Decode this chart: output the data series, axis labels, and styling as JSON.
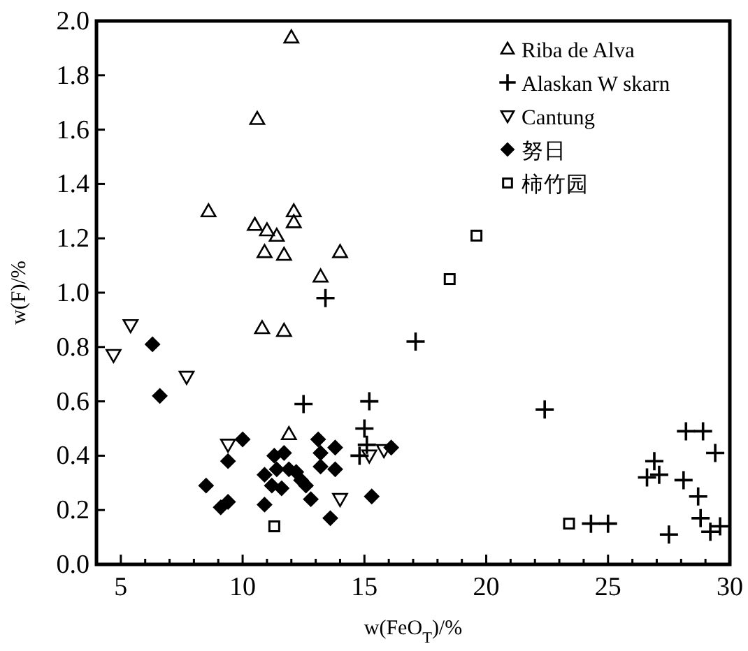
{
  "chart_data": {
    "type": "scatter",
    "xlabel": "w(FeO$_{T}$)/%",
    "ylabel": "w(F)/%",
    "xlim": [
      4,
      30
    ],
    "ylim": [
      0,
      2
    ],
    "xticks": [
      5,
      {
        "value": 6,
        "label": null
      },
      {
        "value": 7,
        "label": null
      },
      {
        "value": 8,
        "label": null
      },
      {
        "value": 9,
        "label": null
      },
      10,
      {
        "value": 11,
        "label": null
      },
      {
        "value": 12,
        "label": null
      },
      {
        "value": 13,
        "label": null
      },
      {
        "value": 14,
        "label": null
      },
      15,
      {
        "value": 16,
        "label": null
      },
      {
        "value": 17,
        "label": null
      },
      {
        "value": 18,
        "label": null
      },
      {
        "value": 19,
        "label": null
      },
      20,
      {
        "value": 21,
        "label": null
      },
      {
        "value": 22,
        "label": null
      },
      {
        "value": 23,
        "label": null
      },
      {
        "value": 24,
        "label": null
      },
      25,
      {
        "value": 26,
        "label": null
      },
      {
        "value": 27,
        "label": null
      },
      {
        "value": 28,
        "label": null
      },
      {
        "value": 29,
        "label": null
      },
      30
    ],
    "yticks": [
      {
        "value": 0,
        "label": "0.0"
      },
      {
        "value": 0.2,
        "label": "0.2"
      },
      {
        "value": 0.4,
        "label": "0.4"
      },
      {
        "value": 0.6,
        "label": "0.6"
      },
      {
        "value": 0.8,
        "label": "0.8"
      },
      {
        "value": 1,
        "label": "1.0"
      },
      {
        "value": 1.2,
        "label": "1.2"
      },
      {
        "value": 1.4,
        "label": "1.4"
      },
      {
        "value": 1.6,
        "label": "1.6"
      },
      {
        "value": 1.8,
        "label": "1.8"
      },
      {
        "value": 2,
        "label": "2.0"
      }
    ],
    "grid": false,
    "legend": "top right",
    "series": [
      {
        "name": "Riba de Alva",
        "color": "#000000",
        "marker": "triangle",
        "x": [
          12.0,
          10.6,
          8.6,
          10.5,
          11.0,
          11.4,
          12.1,
          12.1,
          10.9,
          11.7,
          14.0,
          13.2,
          10.8,
          11.7,
          11.9
        ],
        "values": [
          1.94,
          1.64,
          1.3,
          1.25,
          1.23,
          1.21,
          1.3,
          1.26,
          1.15,
          1.14,
          1.15,
          1.06,
          0.87,
          0.86,
          0.48
        ]
      },
      {
        "name": "Alaskan W skarn",
        "color": "#000000",
        "marker": "cross",
        "x": [
          13.4,
          12.5,
          15.2,
          15.0,
          14.8,
          15.1,
          17.1,
          22.4,
          28.2,
          28.9,
          29.4,
          26.9,
          26.6,
          27.1,
          28.1,
          28.7,
          28.8,
          29.2,
          29.6,
          27.5,
          24.3,
          25.0
        ],
        "values": [
          0.98,
          0.59,
          0.6,
          0.5,
          0.4,
          0.44,
          0.82,
          0.57,
          0.49,
          0.49,
          0.41,
          0.38,
          0.32,
          0.33,
          0.31,
          0.25,
          0.17,
          0.12,
          0.14,
          0.11,
          0.15,
          0.15
        ]
      },
      {
        "name": "Cantung",
        "color": "#000000",
        "marker": "triangle-down",
        "x": [
          4.7,
          5.4,
          7.7,
          9.4,
          14.0,
          15.2,
          15.8
        ],
        "values": [
          0.77,
          0.88,
          0.69,
          0.44,
          0.24,
          0.4,
          0.42
        ]
      },
      {
        "name": "努日",
        "color": "#000000",
        "marker": "diamond",
        "x": [
          6.3,
          6.6,
          8.5,
          9.1,
          9.4,
          9.4,
          10.0,
          10.9,
          10.9,
          11.3,
          11.7,
          11.4,
          11.2,
          11.6,
          11.9,
          12.2,
          12.4,
          12.6,
          12.8,
          13.2,
          13.2,
          13.1,
          13.8,
          13.8,
          13.6,
          15.3,
          16.1
        ],
        "values": [
          0.81,
          0.62,
          0.29,
          0.21,
          0.23,
          0.38,
          0.46,
          0.22,
          0.33,
          0.4,
          0.41,
          0.35,
          0.29,
          0.28,
          0.35,
          0.34,
          0.31,
          0.29,
          0.24,
          0.36,
          0.41,
          0.46,
          0.43,
          0.35,
          0.17,
          0.25,
          0.43
        ]
      },
      {
        "name": "柿竹园",
        "color": "#000000",
        "marker": "square",
        "x": [
          11.3,
          19.6,
          18.5,
          23.4
        ],
        "values": [
          0.14,
          1.21,
          1.05,
          0.15
        ]
      }
    ]
  }
}
